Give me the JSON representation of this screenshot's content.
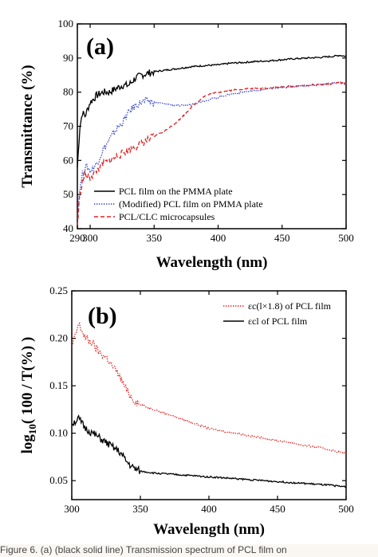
{
  "chart_data": [
    {
      "type": "line",
      "panel_label": "(a)",
      "xlabel": "Wavelength (nm)",
      "ylabel": "Transmittance (%)",
      "xlim": [
        290,
        500
      ],
      "ylim": [
        40,
        100
      ],
      "xticks": [
        290,
        300,
        350,
        400,
        450,
        500
      ],
      "xtick_labels": [
        "290",
        "300",
        "350",
        "400",
        "450",
        "500"
      ],
      "yticks": [
        40,
        50,
        60,
        70,
        80,
        90,
        100
      ],
      "legend_position": "bottom-left",
      "series": [
        {
          "name": "PCL film on the PMMA plate",
          "color": "#000000",
          "style": "solid",
          "x": [
            290,
            292,
            294,
            296,
            298,
            300,
            305,
            310,
            315,
            320,
            325,
            330,
            335,
            340,
            345,
            350,
            360,
            370,
            380,
            390,
            400,
            410,
            420,
            430,
            440,
            450,
            460,
            470,
            480,
            490,
            495,
            500
          ],
          "y": [
            58,
            70,
            74,
            73,
            75,
            77,
            79,
            80,
            80,
            81,
            82,
            82,
            84,
            85,
            85.5,
            86,
            86.5,
            87,
            87.5,
            87.8,
            88,
            88.5,
            88.7,
            89,
            89.2,
            89.5,
            89.8,
            90,
            90.2,
            90.5,
            90.8,
            90.5
          ]
        },
        {
          "name": "(Modified) PCL film on PMMA plate",
          "color": "#3344cc",
          "style": "dotted",
          "x": [
            290,
            292,
            294,
            296,
            298,
            300,
            305,
            310,
            315,
            320,
            325,
            330,
            335,
            340,
            345,
            350,
            360,
            370,
            380,
            390,
            400,
            410,
            420,
            430,
            440,
            450,
            460,
            470,
            480,
            490,
            495,
            500
          ],
          "y": [
            44,
            52,
            56,
            58,
            58,
            57,
            59,
            63,
            66,
            69,
            71,
            74,
            76,
            77,
            77.5,
            77,
            76.5,
            76,
            76.5,
            77.5,
            78.5,
            79.5,
            80,
            80.5,
            81,
            81.3,
            81.6,
            82,
            82.3,
            82.7,
            83,
            82.5
          ]
        },
        {
          "name": "PCL/CLC microcapsules",
          "color": "#e02020",
          "style": "dashed",
          "x": [
            290,
            292,
            294,
            296,
            298,
            300,
            305,
            310,
            315,
            320,
            325,
            330,
            335,
            340,
            345,
            350,
            360,
            370,
            380,
            390,
            400,
            410,
            420,
            430,
            440,
            450,
            460,
            470,
            480,
            490,
            495,
            500
          ],
          "y": [
            41,
            50,
            54,
            56,
            55,
            55,
            57,
            59,
            60,
            61,
            62,
            63,
            64,
            65,
            66,
            67,
            69,
            72,
            76,
            79,
            80,
            80.5,
            81,
            81,
            81.3,
            81.5,
            81.8,
            82,
            82.2,
            82.5,
            82.7,
            82.5
          ]
        }
      ]
    },
    {
      "type": "line",
      "panel_label": "(b)",
      "xlabel": "Wavelength (nm)",
      "ylabel_parts": [
        "log",
        "10",
        "( 100 / T(%) )"
      ],
      "xlim": [
        300,
        500
      ],
      "ylim": [
        0.03,
        0.25
      ],
      "xticks": [
        300,
        350,
        400,
        450,
        500
      ],
      "yticks": [
        0.05,
        0.1,
        0.15,
        0.2,
        0.25
      ],
      "ytick_labels": [
        "0.05",
        "0.10",
        "0.15",
        "0.20",
        "0.25"
      ],
      "legend_position": "top-right",
      "series": [
        {
          "name": "εc(l×1.8) of PCL film",
          "color": "#e02020",
          "style": "dotted",
          "x": [
            300,
            305,
            310,
            315,
            320,
            325,
            330,
            335,
            340,
            345,
            350,
            360,
            370,
            380,
            390,
            400,
            410,
            420,
            430,
            440,
            450,
            460,
            470,
            480,
            490,
            495,
            500
          ],
          "y": [
            0.19,
            0.215,
            0.2,
            0.195,
            0.185,
            0.18,
            0.17,
            0.16,
            0.145,
            0.135,
            0.13,
            0.125,
            0.12,
            0.115,
            0.11,
            0.105,
            0.102,
            0.1,
            0.097,
            0.095,
            0.092,
            0.09,
            0.087,
            0.085,
            0.082,
            0.08,
            0.079
          ]
        },
        {
          "name": "εcl of PCL film",
          "color": "#000000",
          "style": "solid",
          "x": [
            300,
            305,
            310,
            315,
            320,
            325,
            330,
            335,
            340,
            345,
            350,
            360,
            370,
            380,
            390,
            400,
            410,
            420,
            430,
            440,
            450,
            460,
            470,
            480,
            490,
            495,
            500
          ],
          "y": [
            0.11,
            0.115,
            0.105,
            0.1,
            0.095,
            0.09,
            0.085,
            0.08,
            0.07,
            0.063,
            0.06,
            0.058,
            0.057,
            0.056,
            0.055,
            0.054,
            0.053,
            0.052,
            0.051,
            0.05,
            0.049,
            0.048,
            0.047,
            0.046,
            0.045,
            0.044,
            0.044
          ]
        }
      ]
    }
  ],
  "caption": "Figure 6. (a) (black solid line) Transmission spectrum of PCL film on"
}
